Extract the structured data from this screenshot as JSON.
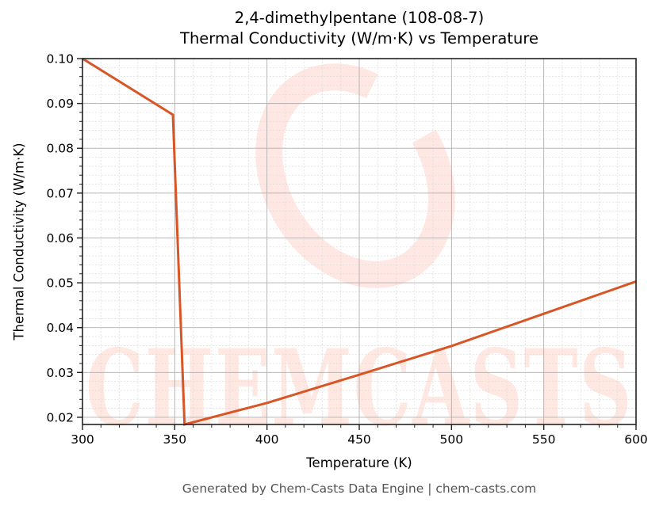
{
  "title": {
    "line1": "2,4-dimethylpentane (108-08-7)",
    "line2": "Thermal Conductivity (W/m·K) vs Temperature"
  },
  "footer": "Generated by Chem-Casts Data Engine | chem-casts.com",
  "watermark": {
    "text": "CHEMCASTS",
    "color": "#ff7f66"
  },
  "colors": {
    "line": "#d95525",
    "grid_major": "#b0b0b0",
    "grid_minor": "#dcdcdc",
    "axis": "#222222"
  },
  "chart_data": {
    "type": "line",
    "title": "2,4-dimethylpentane (108-08-7) Thermal Conductivity (W/m·K) vs Temperature",
    "xlabel": "Temperature (K)",
    "ylabel": "Thermal Conductivity (W/m·K)",
    "xlim": [
      300,
      600
    ],
    "ylim": [
      0.0184,
      0.1
    ],
    "xticks": [
      300,
      350,
      400,
      450,
      500,
      550,
      600
    ],
    "xtick_labels": [
      "300",
      "350",
      "400",
      "450",
      "500",
      "550",
      "600"
    ],
    "yticks": [
      0.02,
      0.03,
      0.04,
      0.05,
      0.06,
      0.07,
      0.08,
      0.09,
      0.1
    ],
    "ytick_labels": [
      "0.02",
      "0.03",
      "0.04",
      "0.05",
      "0.06",
      "0.07",
      "0.08",
      "0.09",
      "0.10"
    ],
    "grid": {
      "major": true,
      "minor": true
    },
    "legend": null,
    "series": [
      {
        "name": "Thermal Conductivity",
        "x": [
          300,
          349,
          355.3,
          400,
          450,
          500,
          550,
          600
        ],
        "y": [
          0.1,
          0.0875,
          0.0184,
          0.0232,
          0.0295,
          0.0359,
          0.0431,
          0.0503
        ]
      }
    ]
  }
}
